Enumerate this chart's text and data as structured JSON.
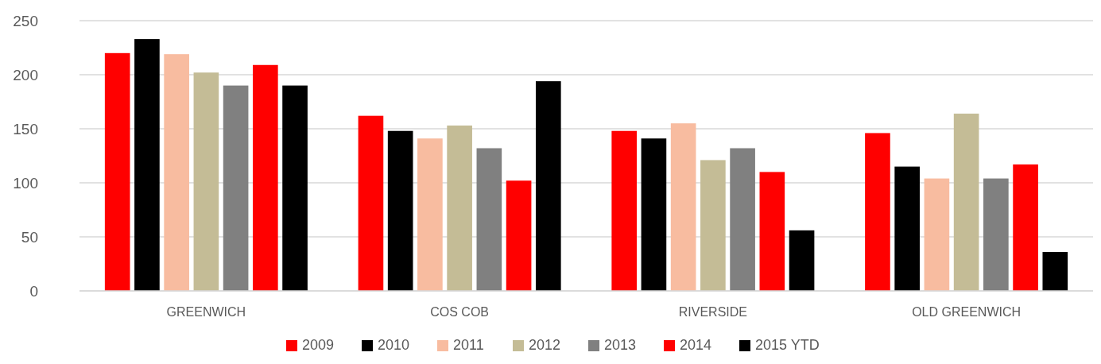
{
  "chart_data": {
    "type": "bar",
    "categories": [
      "GREENWICH",
      "COS COB",
      "RIVERSIDE",
      "OLD GREENWICH"
    ],
    "series": [
      {
        "name": "2009",
        "color": "#ff0000",
        "values": [
          220,
          162,
          148,
          146
        ]
      },
      {
        "name": "2010",
        "color": "#000000",
        "values": [
          233,
          148,
          141,
          115
        ]
      },
      {
        "name": "2011",
        "color": "#f8bca0",
        "values": [
          219,
          141,
          155,
          104
        ]
      },
      {
        "name": "2012",
        "color": "#c4bc96",
        "values": [
          202,
          153,
          121,
          164
        ]
      },
      {
        "name": "2013",
        "color": "#808080",
        "values": [
          190,
          132,
          132,
          104
        ]
      },
      {
        "name": "2014",
        "color": "#ff0000",
        "values": [
          209,
          102,
          110,
          117
        ]
      },
      {
        "name": "2015 YTD",
        "color": "#000000",
        "values": [
          190,
          194,
          56,
          36
        ]
      }
    ],
    "ylim": [
      0,
      250
    ],
    "yticks": [
      0,
      50,
      100,
      150,
      200,
      250
    ],
    "grid": "y",
    "legend": "bottom"
  }
}
